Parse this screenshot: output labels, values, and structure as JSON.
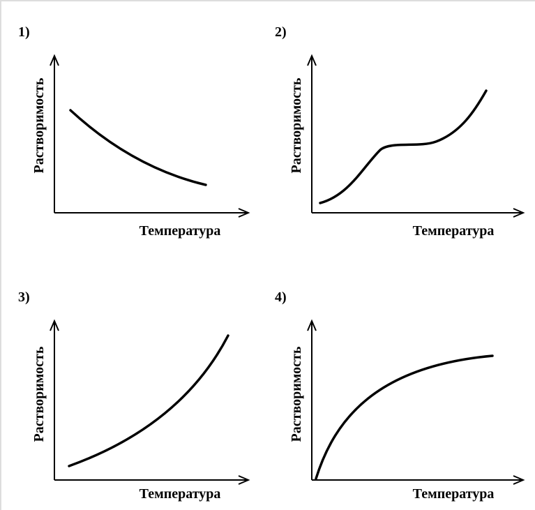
{
  "panels": [
    {
      "label": "1)",
      "y_label": "Растворимость",
      "x_label": "Температура"
    },
    {
      "label": "2)",
      "y_label": "Растворимость",
      "x_label": "Температура"
    },
    {
      "label": "3)",
      "y_label": "Растворимость",
      "x_label": "Температура"
    },
    {
      "label": "4)",
      "y_label": "Растворимость",
      "x_label": "Температура"
    }
  ]
}
